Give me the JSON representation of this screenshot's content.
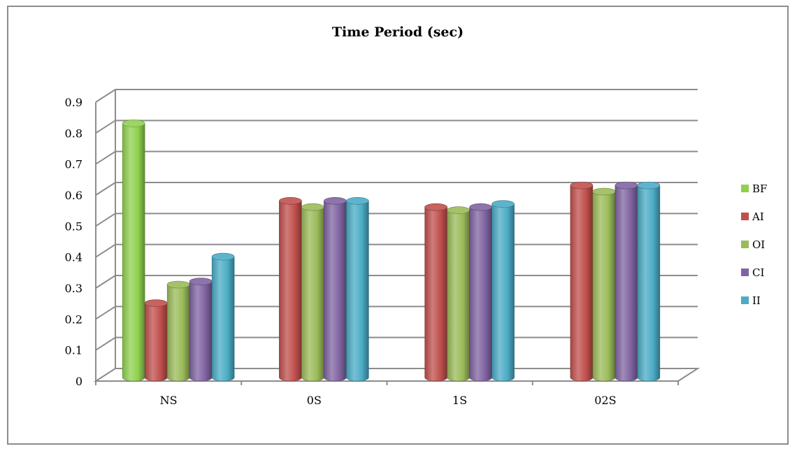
{
  "chart_data": {
    "type": "bar",
    "title": "Time Period (sec)",
    "xlabel": "",
    "ylabel": "",
    "categories": [
      "NS",
      "0S",
      "1S",
      "02S"
    ],
    "ylim": [
      0,
      0.9
    ],
    "yticks": [
      "0",
      "0.1",
      "0.2",
      "0.3",
      "0.4",
      "0.5",
      "0.6",
      "0.7",
      "0.8",
      "0.9"
    ],
    "grid": true,
    "legend_position": "right",
    "bar_style": "3d-cylinder",
    "series": [
      {
        "name": "BF",
        "color": "#8fd14f",
        "values": [
          0.82,
          0,
          0,
          0
        ]
      },
      {
        "name": "AI",
        "color": "#c0504d",
        "values": [
          0.24,
          0.57,
          0.55,
          0.62
        ]
      },
      {
        "name": "OI",
        "color": "#9bbb59",
        "values": [
          0.3,
          0.55,
          0.54,
          0.6
        ]
      },
      {
        "name": "CI",
        "color": "#8064a2",
        "values": [
          0.31,
          0.57,
          0.55,
          0.62
        ]
      },
      {
        "name": "II",
        "color": "#4bacc6",
        "values": [
          0.39,
          0.57,
          0.56,
          0.62
        ]
      }
    ]
  }
}
